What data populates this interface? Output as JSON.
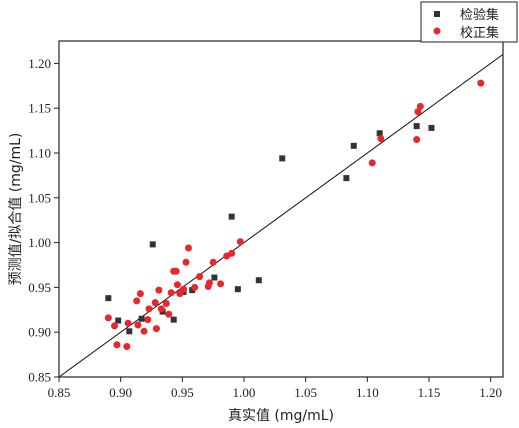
{
  "chart_data": {
    "type": "scatter",
    "xlabel": "真实值 (mg/mL)",
    "ylabel": "预测值/拟合值 (mg/mL)",
    "xlim": [
      0.85,
      1.21
    ],
    "ylim": [
      0.85,
      1.225
    ],
    "xticks": [
      "0.85",
      "0.90",
      "0.95",
      "1.00",
      "1.05",
      "1.10",
      "1.15",
      "1.20"
    ],
    "yticks": [
      "0.85",
      "0.90",
      "0.95",
      "1.00",
      "1.05",
      "1.10",
      "1.15",
      "1.20"
    ],
    "xtick_values": [
      0.85,
      0.9,
      0.95,
      1.0,
      1.05,
      1.1,
      1.15,
      1.2
    ],
    "ytick_values": [
      0.85,
      0.9,
      0.95,
      1.0,
      1.05,
      1.1,
      1.15,
      1.2
    ],
    "grid": false,
    "legend_position": "top-right",
    "reference_line": {
      "x": [
        0.85,
        1.21
      ],
      "y": [
        0.85,
        1.21
      ]
    },
    "series": [
      {
        "name": "检验集",
        "marker": "square",
        "color": "#333333",
        "points": [
          [
            0.89,
            0.938
          ],
          [
            0.898,
            0.913
          ],
          [
            0.907,
            0.901
          ],
          [
            0.917,
            0.915
          ],
          [
            0.926,
            0.998
          ],
          [
            0.934,
            0.923
          ],
          [
            0.943,
            0.914
          ],
          [
            0.951,
            0.945
          ],
          [
            0.958,
            0.947
          ],
          [
            0.976,
            0.961
          ],
          [
            0.99,
            1.029
          ],
          [
            0.995,
            0.948
          ],
          [
            1.012,
            0.958
          ],
          [
            1.031,
            1.094
          ],
          [
            1.083,
            1.072
          ],
          [
            1.089,
            1.108
          ],
          [
            1.11,
            1.122
          ],
          [
            1.14,
            1.13
          ],
          [
            1.152,
            1.128
          ]
        ]
      },
      {
        "name": "校正集",
        "marker": "circle",
        "color": "#e8262b",
        "points": [
          [
            0.89,
            0.916
          ],
          [
            0.895,
            0.907
          ],
          [
            0.897,
            0.886
          ],
          [
            0.905,
            0.884
          ],
          [
            0.906,
            0.91
          ],
          [
            0.913,
            0.935
          ],
          [
            0.914,
            0.908
          ],
          [
            0.916,
            0.943
          ],
          [
            0.919,
            0.901
          ],
          [
            0.922,
            0.914
          ],
          [
            0.923,
            0.926
          ],
          [
            0.928,
            0.933
          ],
          [
            0.929,
            0.904
          ],
          [
            0.931,
            0.947
          ],
          [
            0.933,
            0.926
          ],
          [
            0.937,
            0.932
          ],
          [
            0.939,
            0.92
          ],
          [
            0.941,
            0.944
          ],
          [
            0.943,
            0.968
          ],
          [
            0.945,
            0.968
          ],
          [
            0.946,
            0.953
          ],
          [
            0.948,
            0.943
          ],
          [
            0.951,
            0.948
          ],
          [
            0.953,
            0.978
          ],
          [
            0.955,
            0.994
          ],
          [
            0.96,
            0.95
          ],
          [
            0.964,
            0.962
          ],
          [
            0.971,
            0.951
          ],
          [
            0.972,
            0.955
          ],
          [
            0.975,
            0.978
          ],
          [
            0.981,
            0.954
          ],
          [
            0.986,
            0.985
          ],
          [
            0.99,
            0.988
          ],
          [
            0.997,
            1.001
          ],
          [
            1.104,
            1.089
          ],
          [
            1.111,
            1.116
          ],
          [
            1.14,
            1.115
          ],
          [
            1.141,
            1.146
          ],
          [
            1.143,
            1.152
          ],
          [
            1.192,
            1.178
          ]
        ]
      }
    ]
  }
}
